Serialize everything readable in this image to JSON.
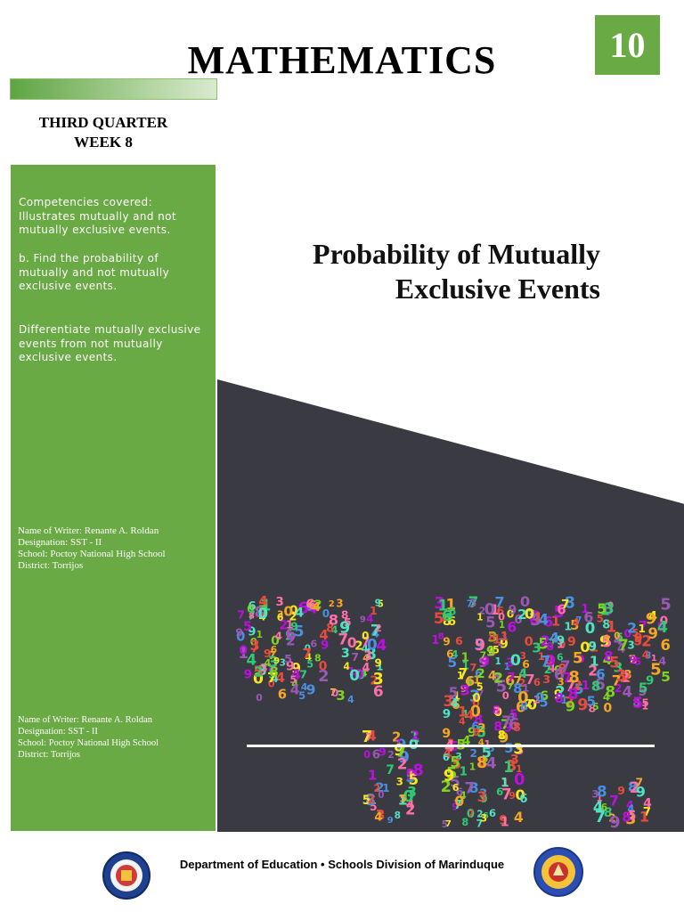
{
  "header": {
    "title": "MATHEMATICS",
    "grade": "10",
    "quarter": "THIRD QUARTER",
    "week": "WEEK 8"
  },
  "sidebar": {
    "competencies_heading": "Competencies covered:",
    "competency_1": "Illustrates mutually and not mutually exclusive events.",
    "competency_2": "b. Find the probability of mutually and not mutually exclusive events.",
    "competency_3": "Differentiate mutually exclusive events from not mutually exclusive events.",
    "writer_block_1": {
      "name": "Name of Writer: Renante A. Roldan",
      "designation": "Designation: SST - II",
      "school": "School: Poctoy National High School",
      "district": "District: Torrijos"
    },
    "writer_block_2": {
      "name": "Name of Writer: Renante A. Roldan",
      "designation": "Designation: SST - II",
      "school": "School: Poctoy National High School",
      "district": "District: Torrijos"
    }
  },
  "main": {
    "title_line_1": "Probability of Mutually",
    "title_line_2": "Exclusive Events"
  },
  "footer": {
    "text": "Department of Education • Schools Division of Marinduque"
  },
  "colors": {
    "green": "#6aaa44",
    "dark_panel": "#393a42"
  },
  "icons": {
    "left_seal": "deped-seal-icon",
    "right_seal": "sdo-marinduque-seal-icon"
  }
}
